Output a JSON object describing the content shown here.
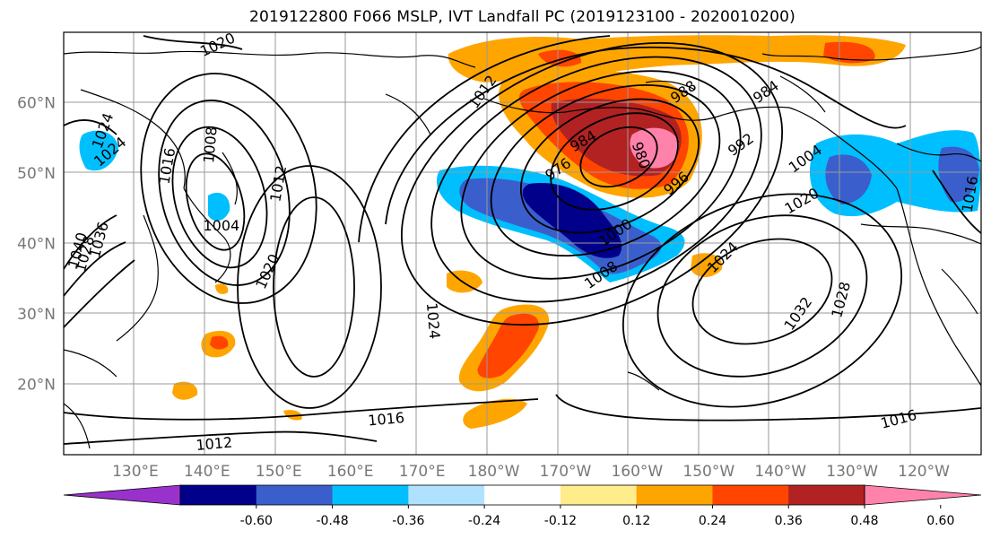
{
  "title": "2019122800 F066 MSLP, IVT Landfall PC (2019123100 - 2020010200)",
  "lat_labels": [
    {
      "text": "60°N",
      "lat": 60
    },
    {
      "text": "50°N",
      "lat": 50
    },
    {
      "text": "40°N",
      "lat": 40
    },
    {
      "text": "30°N",
      "lat": 30
    },
    {
      "text": "20°N",
      "lat": 20
    }
  ],
  "lon_labels": [
    {
      "text": "130°E",
      "lon": 130
    },
    {
      "text": "140°E",
      "lon": 140
    },
    {
      "text": "150°E",
      "lon": 150
    },
    {
      "text": "160°E",
      "lon": 160
    },
    {
      "text": "170°E",
      "lon": 170
    },
    {
      "text": "180°W",
      "lon": 180
    },
    {
      "text": "170°W",
      "lon": 190
    },
    {
      "text": "160°W",
      "lon": 200
    },
    {
      "text": "150°W",
      "lon": 210
    },
    {
      "text": "140°W",
      "lon": 220
    },
    {
      "text": "130°W",
      "lon": 230
    },
    {
      "text": "120°W",
      "lon": 240
    }
  ],
  "extent": {
    "lon_min": 120,
    "lon_max": 248,
    "lat_min": 10,
    "lat_max": 70
  },
  "colorbar": {
    "colors": [
      "#9932cc",
      "#00008b",
      "#3a5fcd",
      "#00bfff",
      "#b0e2ff",
      "#ffffff",
      "#ffec8b",
      "#ffa500",
      "#ff4500",
      "#b22222",
      "#ff82ab"
    ],
    "tick_labels": [
      "-0.60",
      "-0.48",
      "-0.36",
      "-0.24",
      "-0.12",
      "0.12",
      "0.24",
      "0.36",
      "0.48",
      "0.60"
    ],
    "extend": "both"
  },
  "contour_labels": [
    {
      "text": "1020",
      "lon": 141.5,
      "lat": 68.2,
      "rot": -25
    },
    {
      "text": "1024",
      "lon": 125.5,
      "lat": 56.0,
      "rot": -70
    },
    {
      "text": "1024",
      "lon": 126.5,
      "lat": 53.0,
      "rot": -40
    },
    {
      "text": "1016",
      "lon": 134.5,
      "lat": 51.0,
      "rot": -80
    },
    {
      "text": "1008",
      "lon": 140.5,
      "lat": 54.0,
      "rot": -85
    },
    {
      "text": "1012",
      "lon": 150.0,
      "lat": 48.5,
      "rot": -80
    },
    {
      "text": "1004",
      "lon": 142.0,
      "lat": 42.5,
      "rot": 0
    },
    {
      "text": "1020",
      "lon": 148.5,
      "lat": 36.0,
      "rot": -65
    },
    {
      "text": "1028",
      "lon": 123.0,
      "lat": 38.5,
      "rot": -75
    },
    {
      "text": "1036",
      "lon": 125.0,
      "lat": 40.5,
      "rot": -75
    },
    {
      "text": "1040",
      "lon": 122.0,
      "lat": 39.0,
      "rot": -75
    },
    {
      "text": "1024",
      "lon": 171.5,
      "lat": 29.0,
      "rot": 85
    },
    {
      "text": "1016",
      "lon": 165.0,
      "lat": 15.0,
      "rot": -5
    },
    {
      "text": "1012",
      "lon": 141.0,
      "lat": 11.5,
      "rot": -5
    },
    {
      "text": "1012",
      "lon": 178.5,
      "lat": 61.5,
      "rot": -55
    },
    {
      "text": "976",
      "lon": 189.0,
      "lat": 50.5,
      "rot": -35
    },
    {
      "text": "984",
      "lon": 192.5,
      "lat": 54.5,
      "rot": -30
    },
    {
      "text": "980",
      "lon": 200.5,
      "lat": 52.5,
      "rot": 70
    },
    {
      "text": "988",
      "lon": 206.5,
      "lat": 61.5,
      "rot": -35
    },
    {
      "text": "984",
      "lon": 218.0,
      "lat": 61.5,
      "rot": -35
    },
    {
      "text": "992",
      "lon": 214.5,
      "lat": 54.0,
      "rot": -35
    },
    {
      "text": "996",
      "lon": 205.5,
      "lat": 48.5,
      "rot": -40
    },
    {
      "text": "1000",
      "lon": 197.0,
      "lat": 41.5,
      "rot": -35
    },
    {
      "text": "1008",
      "lon": 195.0,
      "lat": 35.5,
      "rot": -35
    },
    {
      "text": "1004",
      "lon": 223.5,
      "lat": 52.0,
      "rot": -35
    },
    {
      "text": "1020",
      "lon": 223.0,
      "lat": 46.0,
      "rot": -30
    },
    {
      "text": "1024",
      "lon": 212.0,
      "lat": 38.0,
      "rot": -45
    },
    {
      "text": "1032",
      "lon": 222.5,
      "lat": 30.0,
      "rot": -55
    },
    {
      "text": "1028",
      "lon": 228.5,
      "lat": 32.0,
      "rot": -75
    },
    {
      "text": "1016",
      "lon": 236.5,
      "lat": 15.0,
      "rot": -15
    },
    {
      "text": "1016",
      "lon": 246.5,
      "lat": 47.0,
      "rot": -80
    }
  ]
}
